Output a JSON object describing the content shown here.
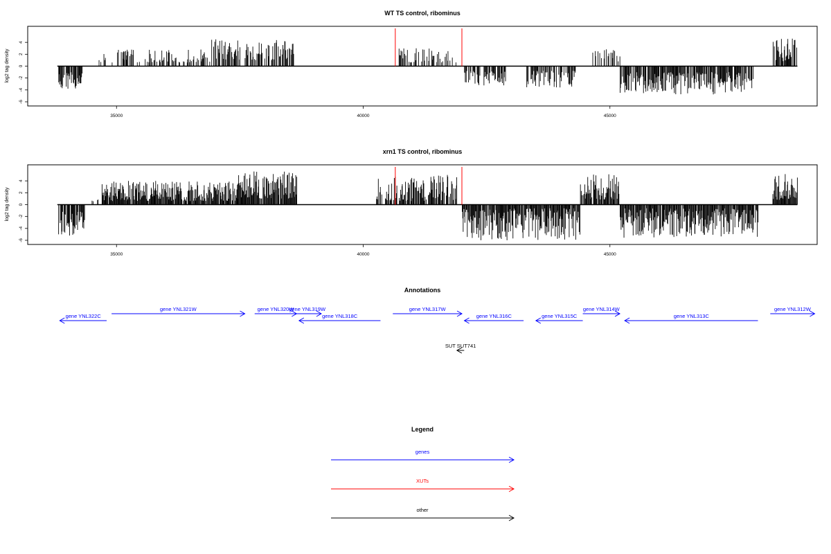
{
  "chart_data": [
    {
      "type": "bar",
      "title": "WT TS control, ribominus",
      "xlabel": "",
      "ylabel": "log2 tag density",
      "xlim": [
        33200,
        49200
      ],
      "ylim": [
        -6,
        6
      ],
      "x_ticks": [
        35000,
        40000,
        45000
      ],
      "y_ticks": [
        -6,
        -4,
        -2,
        0,
        2,
        4
      ],
      "baseline": [
        33800,
        48800
      ],
      "red_marks": [
        40650,
        42000
      ],
      "segments": [
        {
          "from": 33820,
          "to": 34300,
          "min": -4,
          "max": -1,
          "density": 0.8
        },
        {
          "from": 34550,
          "to": 35150,
          "min": 0.6,
          "max": 2.2,
          "density": 0.25
        },
        {
          "from": 35000,
          "to": 35300,
          "min": 1,
          "max": 3,
          "density": 0.55
        },
        {
          "from": 35300,
          "to": 36900,
          "min": 0.6,
          "max": 2.8,
          "density": 0.45
        },
        {
          "from": 36900,
          "to": 37500,
          "min": 1,
          "max": 4.6,
          "density": 0.6
        },
        {
          "from": 37600,
          "to": 38600,
          "min": 1,
          "max": 4.4,
          "density": 0.65
        },
        {
          "from": 40700,
          "to": 41500,
          "min": 0.6,
          "max": 3.2,
          "density": 0.5
        },
        {
          "from": 41500,
          "to": 41900,
          "min": 0.6,
          "max": 2.6,
          "density": 0.3
        },
        {
          "from": 42050,
          "to": 42900,
          "min": -3.4,
          "max": -0.8,
          "density": 0.7
        },
        {
          "from": 43300,
          "to": 44300,
          "min": -3.6,
          "max": -0.8,
          "density": 0.7
        },
        {
          "from": 44600,
          "to": 45200,
          "min": 0.8,
          "max": 3,
          "density": 0.3
        },
        {
          "from": 45200,
          "to": 47900,
          "min": -4.8,
          "max": -1,
          "density": 0.85
        },
        {
          "from": 48300,
          "to": 48800,
          "min": 0.8,
          "max": 4.8,
          "density": 0.85
        }
      ]
    },
    {
      "type": "bar",
      "title": "xrn1 TS control, ribominus",
      "xlabel": "",
      "ylabel": "log2 tag density",
      "xlim": [
        33200,
        49200
      ],
      "ylim": [
        -6,
        6
      ],
      "x_ticks": [
        35000,
        40000,
        45000
      ],
      "y_ticks": [
        -6,
        -4,
        -2,
        0,
        2,
        4
      ],
      "baseline": [
        33800,
        48800
      ],
      "red_marks": [
        40650,
        42000
      ],
      "segments": [
        {
          "from": 33820,
          "to": 34350,
          "min": -5.2,
          "max": -1.2,
          "density": 0.85
        },
        {
          "from": 34500,
          "to": 34700,
          "min": 0.4,
          "max": 1,
          "density": 0.15
        },
        {
          "from": 34700,
          "to": 37450,
          "min": 0.6,
          "max": 4,
          "density": 0.95
        },
        {
          "from": 37450,
          "to": 38650,
          "min": 1,
          "max": 5.6,
          "density": 0.95
        },
        {
          "from": 40250,
          "to": 41900,
          "min": 0.6,
          "max": 5,
          "density": 0.7
        },
        {
          "from": 42000,
          "to": 44400,
          "min": -6,
          "max": -0.6,
          "density": 0.95
        },
        {
          "from": 44400,
          "to": 45200,
          "min": 0.8,
          "max": 5.2,
          "density": 0.9
        },
        {
          "from": 45200,
          "to": 48000,
          "min": -5.6,
          "max": -0.6,
          "density": 0.95
        },
        {
          "from": 48300,
          "to": 48800,
          "min": 0.8,
          "max": 5.2,
          "density": 0.95
        }
      ]
    }
  ],
  "annotations": {
    "title": "Annotations",
    "genes": [
      {
        "label": "gene YNL322C",
        "start": 33850,
        "end": 34800,
        "strand": "-"
      },
      {
        "label": "gene YNL321W",
        "start": 34900,
        "end": 37600,
        "strand": "+"
      },
      {
        "label": "gene YNL320W",
        "start": 37800,
        "end": 38650,
        "strand": "+"
      },
      {
        "label": "gene YNL319W",
        "start": 38580,
        "end": 39150,
        "strand": "+"
      },
      {
        "label": "gene YNL318C",
        "start": 38700,
        "end": 40350,
        "strand": "-"
      },
      {
        "label": "gene YNL317W",
        "start": 40600,
        "end": 42000,
        "strand": "+"
      },
      {
        "label": "gene YNL316C",
        "start": 42050,
        "end": 43250,
        "strand": "-"
      },
      {
        "label": "gene YNL315C",
        "start": 43500,
        "end": 44450,
        "strand": "-"
      },
      {
        "label": "gene YNL314W",
        "start": 44450,
        "end": 45200,
        "strand": "+"
      },
      {
        "label": "gene YNL313C",
        "start": 45300,
        "end": 48000,
        "strand": "-"
      },
      {
        "label": "gene YNL312W",
        "start": 48250,
        "end": 49150,
        "strand": "+"
      }
    ],
    "other": [
      {
        "label": "SUT SUT741",
        "start": 41900,
        "end": 41990,
        "strand": "-"
      }
    ]
  },
  "legend": {
    "title": "Legend",
    "items": [
      {
        "label": "genes",
        "color": "#0000ff"
      },
      {
        "label": "XUTs",
        "color": "#ff0000"
      },
      {
        "label": "other",
        "color": "#000000"
      }
    ]
  },
  "colors": {
    "gene": "#0000ff",
    "xut": "#ff0000",
    "other": "#000000",
    "signal": "#000000"
  }
}
